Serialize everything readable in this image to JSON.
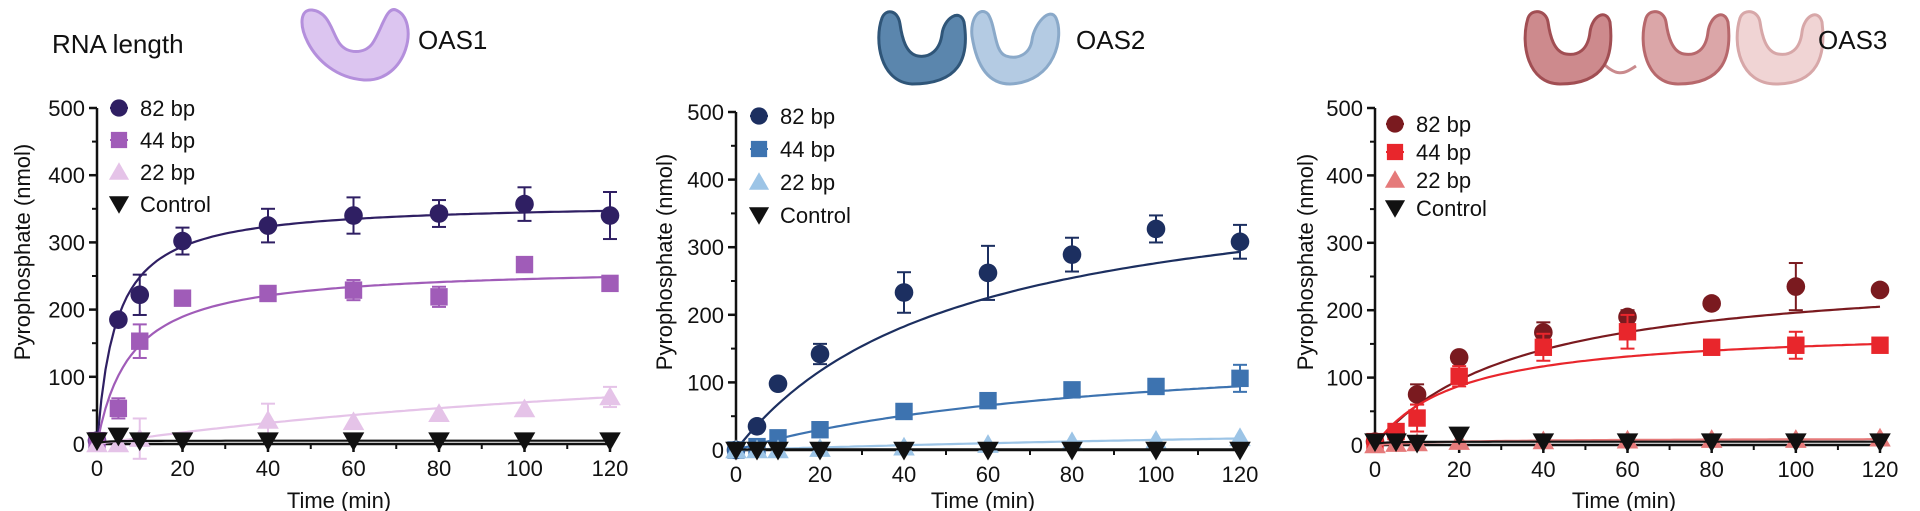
{
  "header": {
    "rna_length_label": "RNA length",
    "oas1_label": "OAS1",
    "oas2_label": "OAS2",
    "oas3_label": "OAS3"
  },
  "chart_data": [
    {
      "type": "scatter",
      "title": "OAS1",
      "xlabel": "Time (min)",
      "ylabel": "Pyrophosphate (nmol)",
      "xlim": [
        0,
        120
      ],
      "ylim": [
        0,
        500
      ],
      "xticks": [
        "0",
        "20",
        "40",
        "60",
        "80",
        "100",
        "120"
      ],
      "yticks": [
        "0",
        "100",
        "200",
        "300",
        "400",
        "500"
      ],
      "legend_position": "top-left",
      "fits": true,
      "series": [
        {
          "name": "82 bp",
          "marker": "circle",
          "color": "#2f1f63",
          "x": [
            0,
            5,
            10,
            20,
            40,
            60,
            80,
            100,
            120
          ],
          "y": [
            5,
            185,
            222,
            302,
            325,
            340,
            343,
            357,
            340
          ],
          "err": [
            0,
            0,
            30,
            20,
            25,
            27,
            20,
            25,
            35
          ],
          "fit_max": 360,
          "fit_k": 4.5
        },
        {
          "name": "44 bp",
          "marker": "square",
          "color": "#a05cb8",
          "x": [
            0,
            5,
            10,
            20,
            40,
            60,
            80,
            100,
            120
          ],
          "y": [
            5,
            53,
            153,
            217,
            224,
            229,
            219,
            267,
            239
          ],
          "err": [
            0,
            15,
            25,
            8,
            10,
            15,
            15,
            0,
            0
          ],
          "fit_max": 265,
          "fit_k": 8
        },
        {
          "name": "22 bp",
          "marker": "triangle-up",
          "color": "#e5c3e8",
          "x": [
            0,
            5,
            10,
            40,
            60,
            80,
            100,
            120
          ],
          "y": [
            0,
            0,
            8,
            35,
            33,
            45,
            52,
            70
          ],
          "err": [
            0,
            0,
            30,
            25,
            0,
            0,
            0,
            15
          ],
          "fit_max": 180,
          "fit_k": 190
        },
        {
          "name": "Control",
          "marker": "triangle-down",
          "color": "#111111",
          "x": [
            0,
            5,
            10,
            20,
            40,
            60,
            80,
            100,
            120
          ],
          "y": [
            5,
            12,
            5,
            5,
            5,
            5,
            5,
            5,
            5
          ],
          "err": [
            0,
            0,
            0,
            0,
            0,
            0,
            0,
            0,
            0
          ],
          "fit_max": 5,
          "fit_k": 1
        }
      ]
    },
    {
      "type": "scatter",
      "title": "OAS2",
      "xlabel": "Time (min)",
      "ylabel": "Pyrophosphate (nmol)",
      "xlim": [
        0,
        120
      ],
      "ylim": [
        0,
        500
      ],
      "xticks": [
        "0",
        "20",
        "40",
        "60",
        "80",
        "100",
        "120"
      ],
      "yticks": [
        "0",
        "100",
        "200",
        "300",
        "400",
        "500"
      ],
      "legend_position": "top-left",
      "fits": true,
      "series": [
        {
          "name": "82 bp",
          "marker": "circle",
          "color": "#1c2f60",
          "x": [
            0,
            5,
            10,
            20,
            40,
            60,
            80,
            100,
            120
          ],
          "y": [
            0,
            35,
            98,
            142,
            233,
            262,
            289,
            327,
            308
          ],
          "err": [
            0,
            0,
            0,
            15,
            30,
            40,
            25,
            20,
            25
          ],
          "fit_max": 420,
          "fit_k": 52
        },
        {
          "name": "44 bp",
          "marker": "square",
          "color": "#3d73b0",
          "x": [
            0,
            5,
            10,
            20,
            40,
            60,
            80,
            100,
            120
          ],
          "y": [
            0,
            5,
            18,
            30,
            57,
            73,
            89,
            94,
            106
          ],
          "err": [
            0,
            0,
            0,
            0,
            0,
            8,
            10,
            10,
            20
          ],
          "fit_max": 165,
          "fit_k": 90
        },
        {
          "name": "22 bp",
          "marker": "triangle-up",
          "color": "#9cc4e6",
          "x": [
            0,
            5,
            10,
            20,
            40,
            60,
            80,
            100,
            120
          ],
          "y": [
            0,
            0,
            0,
            2,
            4,
            8,
            12,
            14,
            18
          ],
          "err": [
            0,
            0,
            0,
            0,
            0,
            0,
            0,
            0,
            0
          ],
          "fit_max": 60,
          "fit_k": 300
        },
        {
          "name": "Control",
          "marker": "triangle-down",
          "color": "#111111",
          "x": [
            0,
            5,
            10,
            20,
            40,
            60,
            80,
            100,
            120
          ],
          "y": [
            0,
            0,
            0,
            0,
            0,
            0,
            0,
            0,
            0
          ],
          "err": [
            0,
            0,
            0,
            0,
            0,
            0,
            0,
            0,
            0
          ],
          "fit_max": 1,
          "fit_k": 1
        }
      ]
    },
    {
      "type": "scatter",
      "title": "OAS3",
      "xlabel": "Time (min)",
      "ylabel": "Pyrophosphate (nmol)",
      "xlim": [
        0,
        120
      ],
      "ylim": [
        0,
        500
      ],
      "xticks": [
        "0",
        "20",
        "40",
        "60",
        "80",
        "100",
        "120"
      ],
      "yticks": [
        "0",
        "100",
        "200",
        "300",
        "400",
        "500"
      ],
      "legend_position": "top-left",
      "fits": true,
      "series": [
        {
          "name": "82 bp",
          "marker": "circle",
          "color": "#7a1a1f",
          "x": [
            0,
            5,
            10,
            20,
            40,
            60,
            80,
            100,
            120
          ],
          "y": [
            5,
            15,
            75,
            130,
            167,
            190,
            210,
            235,
            230
          ],
          "err": [
            0,
            0,
            15,
            0,
            15,
            10,
            8,
            35,
            0
          ],
          "fit_max": 265,
          "fit_k": 35
        },
        {
          "name": "44 bp",
          "marker": "square",
          "color": "#e8262c",
          "x": [
            0,
            5,
            10,
            20,
            40,
            60,
            80,
            100,
            120
          ],
          "y": [
            5,
            20,
            40,
            102,
            145,
            168,
            145,
            148,
            148
          ],
          "err": [
            0,
            0,
            20,
            15,
            20,
            25,
            0,
            20,
            0
          ],
          "fit_max": 175,
          "fit_k": 20
        },
        {
          "name": "22 bp",
          "marker": "triangle-up",
          "color": "#e57a7a",
          "x": [
            0,
            5,
            10,
            20,
            40,
            60,
            80,
            100,
            120
          ],
          "y": [
            0,
            2,
            3,
            5,
            6,
            7,
            8,
            8,
            10
          ],
          "err": [
            0,
            0,
            0,
            0,
            0,
            0,
            0,
            0,
            0
          ],
          "fit_max": 10,
          "fit_k": 20
        },
        {
          "name": "Control",
          "marker": "triangle-down",
          "color": "#111111",
          "x": [
            0,
            5,
            10,
            20,
            40,
            60,
            80,
            100,
            120
          ],
          "y": [
            5,
            5,
            3,
            15,
            5,
            5,
            5,
            5,
            5
          ],
          "err": [
            0,
            0,
            0,
            0,
            0,
            0,
            0,
            0,
            0
          ],
          "fit_max": 5,
          "fit_k": 1
        }
      ]
    }
  ],
  "colors": {
    "oas1_domain": "#c9a7e6",
    "oas2_domain_dark": "#3e6c95",
    "oas2_domain_light": "#a8c3df",
    "oas3_domain_dark": "#b86a6e",
    "oas3_domain_light": "#ecc6c6"
  }
}
